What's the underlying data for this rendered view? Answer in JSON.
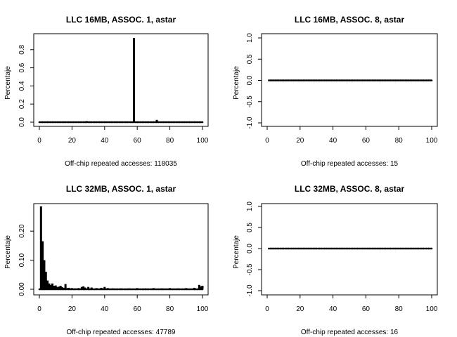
{
  "chart_data": [
    {
      "type": "bar",
      "title": "LLC 16MB, ASSOC. 1, astar",
      "xlabel": "Off-chip repeated accesses: 118035",
      "ylabel": "Percentaje",
      "xlim": [
        0,
        100
      ],
      "ylim": [
        0,
        0.93
      ],
      "x_ticks": [
        "0",
        "20",
        "40",
        "60",
        "80",
        "100"
      ],
      "y_ticks": [
        "0.0",
        "0.2",
        "0.4",
        "0.6",
        "0.8"
      ],
      "x": [
        1,
        29,
        58,
        72,
        86
      ],
      "values": [
        0.002,
        0.012,
        0.93,
        0.025,
        0.008
      ],
      "baseline_points": "0..100 at 0"
    },
    {
      "type": "bar",
      "title": "LLC 16MB, ASSOC. 8, astar",
      "xlabel": "Off-chip repeated accesses: 15",
      "ylabel": "Percentaje",
      "xlim": [
        0,
        100
      ],
      "ylim": [
        -1.0,
        1.0
      ],
      "x_ticks": [
        "0",
        "20",
        "40",
        "60",
        "80",
        "100"
      ],
      "y_ticks": [
        "-1.0",
        "-0.5",
        "0.0",
        "0.5",
        "1.0"
      ],
      "x": [],
      "values": [],
      "baseline_points": "1..100 at 0"
    },
    {
      "type": "bar",
      "title": "LLC 32MB, ASSOC. 1, astar",
      "xlabel": "Off-chip repeated accesses: 47789",
      "ylabel": "Percentaje",
      "xlim": [
        0,
        100
      ],
      "ylim": [
        0,
        0.285
      ],
      "x_ticks": [
        "0",
        "20",
        "40",
        "60",
        "80",
        "100"
      ],
      "y_ticks": [
        "0.00",
        "0.10",
        "0.20"
      ],
      "x": [
        1,
        2,
        3,
        4,
        5,
        6,
        7,
        8,
        9,
        10,
        11,
        12,
        13,
        14,
        15,
        16,
        17,
        18,
        19,
        20,
        22,
        24,
        26,
        27,
        28,
        30,
        32,
        35,
        38,
        40,
        42,
        45,
        50,
        55,
        60,
        65,
        70,
        75,
        80,
        85,
        90,
        95,
        98,
        99,
        100
      ],
      "values": [
        0.285,
        0.165,
        0.1,
        0.06,
        0.03,
        0.02,
        0.015,
        0.02,
        0.012,
        0.013,
        0.008,
        0.009,
        0.012,
        0.007,
        0.005,
        0.018,
        0.004,
        0.005,
        0.003,
        0.004,
        0.003,
        0.004,
        0.008,
        0.01,
        0.006,
        0.008,
        0.006,
        0.004,
        0.005,
        0.008,
        0.004,
        0.003,
        0.003,
        0.003,
        0.004,
        0.003,
        0.004,
        0.003,
        0.004,
        0.003,
        0.004,
        0.005,
        0.015,
        0.01,
        0.012
      ],
      "baseline_points": "0..100 at 0"
    },
    {
      "type": "bar",
      "title": "LLC 32MB, ASSOC. 8, astar",
      "xlabel": "Off-chip repeated accesses: 16",
      "ylabel": "Percentaje",
      "xlim": [
        0,
        100
      ],
      "ylim": [
        -1.0,
        1.0
      ],
      "x_ticks": [
        "0",
        "20",
        "40",
        "60",
        "80",
        "100"
      ],
      "y_ticks": [
        "-1.0",
        "-0.5",
        "0.0",
        "0.5",
        "1.0"
      ],
      "x": [],
      "values": [],
      "baseline_points": "1..100 at 0"
    }
  ]
}
